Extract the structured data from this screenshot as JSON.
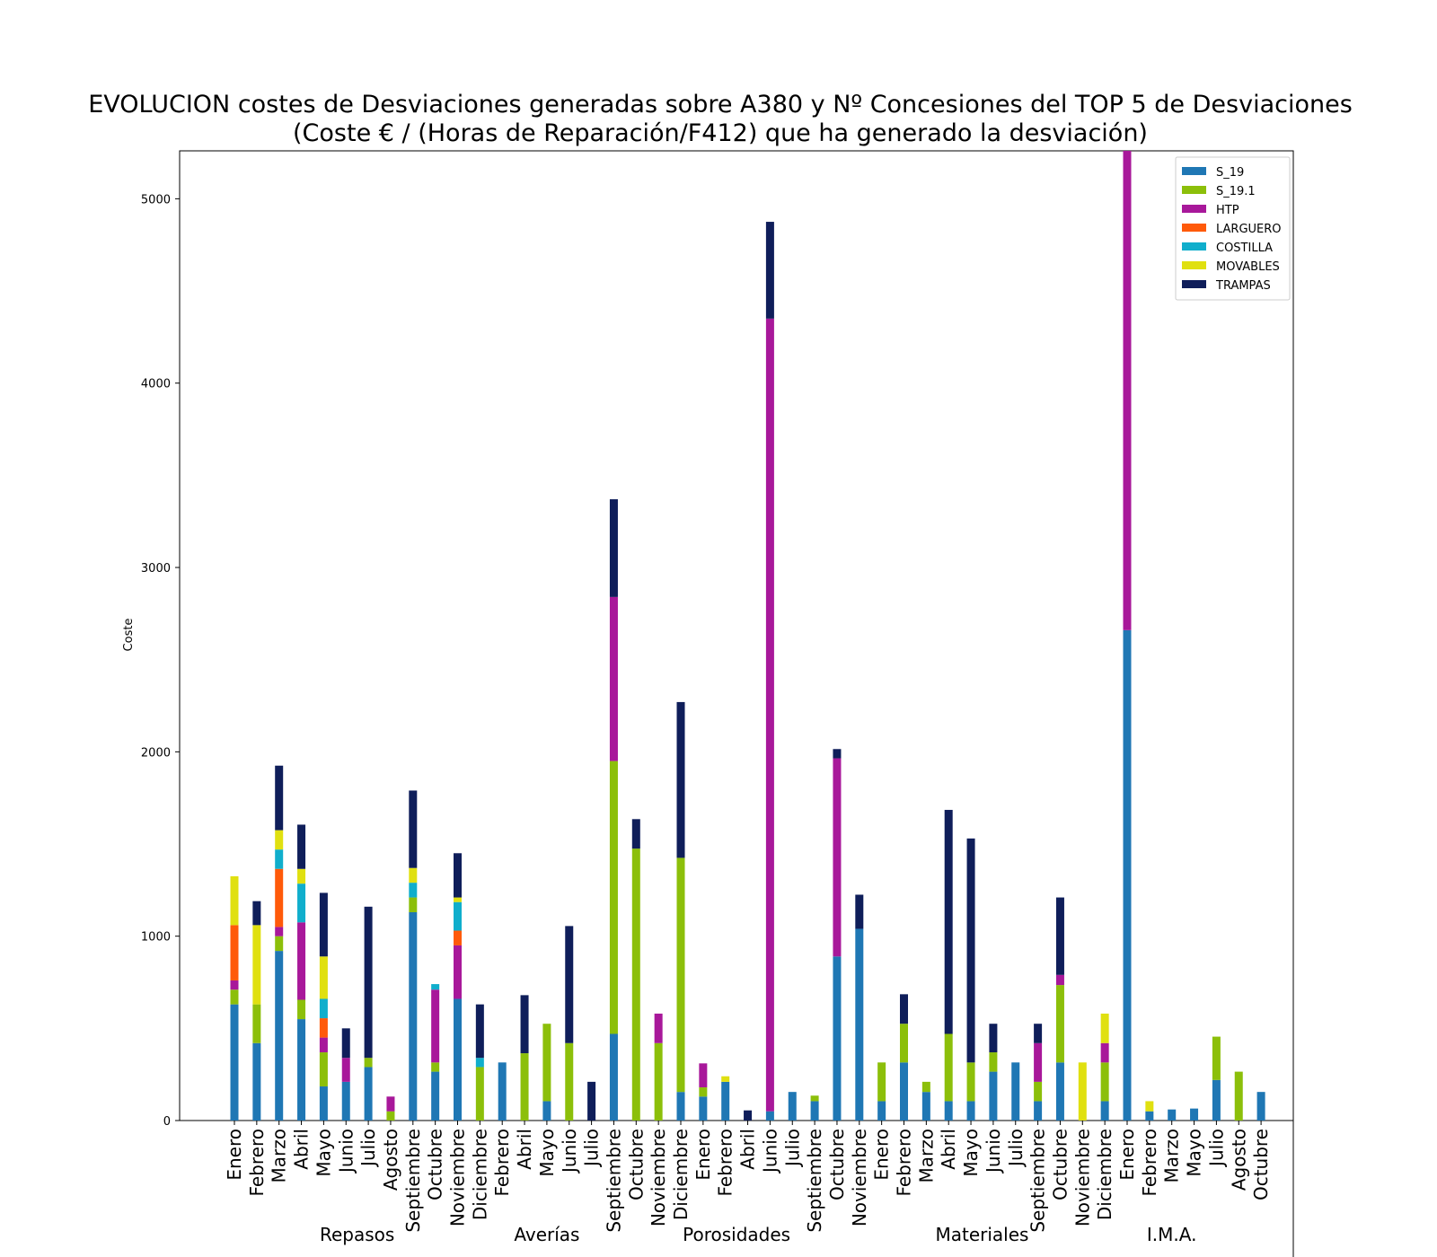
{
  "chart_data": {
    "type": "bar",
    "stacked": true,
    "title": "EVOLUCION costes de Desviaciones  generadas sobre A380 y Nº Concesiones del TOP 5 de Desviaciones",
    "subtitle": "(Coste € / (Horas de Reparación/F412) que ha generado la desviación)",
    "xlabel": "",
    "ylabel": "Coste",
    "ylim": [
      0,
      5260
    ],
    "yticks": [
      0,
      1000,
      2000,
      3000,
      4000,
      5000
    ],
    "legend_position": "top-right",
    "grid": false,
    "groups": [
      {
        "name": "Repasos",
        "start": 0,
        "end": 11
      },
      {
        "name": "Averías",
        "start": 12,
        "end": 16
      },
      {
        "name": "Porosidades",
        "start": 17,
        "end": 28
      },
      {
        "name": "Materiales",
        "start": 29,
        "end": 38
      },
      {
        "name": "I.M.A.",
        "start": 39,
        "end": 45
      }
    ],
    "categories": [
      "Enero",
      "Febrero",
      "Marzo",
      "Abril",
      "Mayo",
      "Junio",
      "Julio",
      "Agosto",
      "Septiembre",
      "Octubre",
      "Noviembre",
      "Diciembre",
      "Febrero",
      "Abril",
      "Mayo",
      "Junio",
      "Julio",
      "Septiembre",
      "Octubre",
      "Noviembre",
      "Diciembre",
      "Enero",
      "Febrero",
      "Abril",
      "Junio",
      "Julio",
      "Septiembre",
      "Octubre",
      "Noviembre",
      "Enero",
      "Febrero",
      "Marzo",
      "Abril",
      "Mayo",
      "Junio",
      "Julio",
      "Septiembre",
      "Octubre",
      "Noviembre",
      "Diciembre",
      "Enero",
      "Febrero",
      "Marzo",
      "Mayo",
      "Julio",
      "Agosto",
      "Octubre"
    ],
    "series": [
      {
        "name": "S_19",
        "color": "#1f77b4",
        "values": [
          630,
          420,
          920,
          550,
          185,
          210,
          290,
          0,
          1130,
          265,
          660,
          0,
          315,
          0,
          105,
          0,
          0,
          470,
          0,
          0,
          155,
          130,
          210,
          0,
          50,
          155,
          105,
          890,
          1040,
          105,
          315,
          155,
          105,
          105,
          265,
          315,
          105,
          315,
          0,
          105,
          2660,
          50,
          60,
          65,
          220,
          0,
          155
        ]
      },
      {
        "name": "S_19.1",
        "color": "#8cbf0a",
        "values": [
          80,
          210,
          80,
          105,
          185,
          0,
          50,
          50,
          80,
          50,
          0,
          290,
          0,
          365,
          420,
          420,
          0,
          1480,
          1475,
          420,
          1270,
          50,
          0,
          0,
          0,
          0,
          30,
          0,
          0,
          210,
          210,
          55,
          365,
          210,
          105,
          0,
          105,
          420,
          0,
          210,
          0,
          0,
          0,
          0,
          235,
          265,
          0
        ]
      },
      {
        "name": "HTP",
        "color": "#a8189a",
        "values": [
          50,
          0,
          50,
          420,
          80,
          130,
          0,
          80,
          0,
          395,
          290,
          0,
          0,
          0,
          0,
          0,
          0,
          890,
          0,
          160,
          0,
          130,
          0,
          0,
          4300,
          0,
          0,
          1075,
          0,
          0,
          0,
          0,
          0,
          0,
          0,
          0,
          210,
          55,
          0,
          105,
          2600,
          0,
          0,
          0,
          0,
          0,
          0
        ]
      },
      {
        "name": "LARGUERO",
        "color": "#ff5a0a",
        "values": [
          300,
          0,
          315,
          0,
          105,
          0,
          0,
          0,
          0,
          0,
          80,
          0,
          0,
          0,
          0,
          0,
          0,
          0,
          0,
          0,
          0,
          0,
          0,
          0,
          0,
          0,
          0,
          0,
          0,
          0,
          0,
          0,
          0,
          0,
          0,
          0,
          0,
          0,
          0,
          0,
          0,
          0,
          0,
          0,
          0,
          0,
          0
        ]
      },
      {
        "name": "COSTILLA",
        "color": "#10aecc",
        "values": [
          0,
          0,
          105,
          210,
          105,
          0,
          0,
          0,
          80,
          30,
          155,
          50,
          0,
          0,
          0,
          0,
          0,
          0,
          0,
          0,
          0,
          0,
          0,
          0,
          0,
          0,
          0,
          0,
          0,
          0,
          0,
          0,
          0,
          0,
          0,
          0,
          0,
          0,
          0,
          0,
          0,
          0,
          0,
          0,
          0,
          0,
          0
        ]
      },
      {
        "name": "MOVABLES",
        "color": "#e0e010",
        "values": [
          265,
          430,
          105,
          80,
          230,
          0,
          0,
          0,
          80,
          0,
          25,
          0,
          0,
          0,
          0,
          0,
          0,
          0,
          0,
          0,
          0,
          0,
          30,
          0,
          0,
          0,
          0,
          0,
          0,
          0,
          0,
          0,
          0,
          0,
          0,
          0,
          0,
          0,
          315,
          160,
          0,
          55,
          0,
          0,
          0,
          0,
          0
        ]
      },
      {
        "name": "TRAMPAS",
        "color": "#0f1e5a",
        "values": [
          0,
          130,
          350,
          240,
          345,
          160,
          820,
          0,
          420,
          0,
          240,
          290,
          0,
          315,
          0,
          635,
          210,
          530,
          160,
          0,
          845,
          0,
          0,
          55,
          525,
          0,
          0,
          50,
          185,
          0,
          160,
          0,
          1215,
          1215,
          155,
          0,
          105,
          420,
          0,
          0,
          0,
          0,
          0,
          0,
          0,
          0,
          0
        ]
      }
    ]
  }
}
